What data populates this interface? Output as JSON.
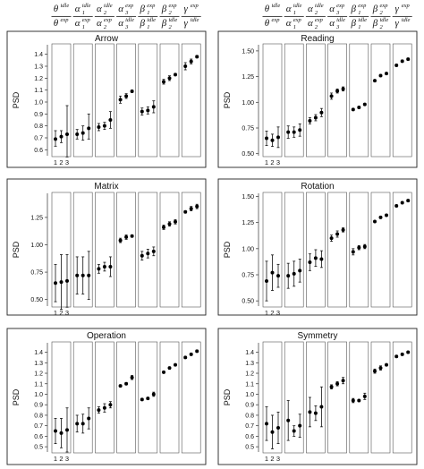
{
  "header": {
    "ratios": [
      {
        "num_sym": "θ",
        "num_sup": "idle",
        "num_sub": "",
        "den_sym": "θ",
        "den_sup": "exp",
        "den_sub": ""
      },
      {
        "num_sym": "α",
        "num_sup": "idle",
        "num_sub": "1",
        "den_sym": "α",
        "den_sup": "exp",
        "den_sub": "1"
      },
      {
        "num_sym": "α",
        "num_sup": "idle",
        "num_sub": "2",
        "den_sym": "α",
        "den_sup": "exp",
        "den_sub": "2"
      },
      {
        "num_sym": "α",
        "num_sup": "exp",
        "num_sub": "3",
        "den_sym": "α",
        "den_sup": "idle",
        "den_sub": "3"
      },
      {
        "num_sym": "β",
        "num_sup": "exp",
        "num_sub": "1",
        "den_sym": "β",
        "den_sup": "idle",
        "den_sub": "1"
      },
      {
        "num_sym": "β",
        "num_sup": "exp",
        "num_sub": "2",
        "den_sym": "β",
        "den_sup": "idle",
        "den_sub": "2"
      },
      {
        "num_sym": "γ",
        "num_sup": "exp",
        "num_sub": "",
        "den_sym": "γ",
        "den_sup": "idle",
        "den_sub": ""
      }
    ]
  },
  "chart_data": [
    {
      "type": "errorbar-panels",
      "title": "Arrow",
      "ylabel": "PSD",
      "ylim": [
        0.55,
        1.48
      ],
      "yticks": [
        "0.6",
        "0.7",
        "0.8",
        "0.9",
        "1.0",
        "1.1",
        "1.2",
        "1.3",
        "1.4"
      ],
      "ytick_values": [
        0.6,
        0.7,
        0.8,
        0.9,
        1.0,
        1.1,
        1.2,
        1.3,
        1.4
      ],
      "xticks": [
        "1",
        "2",
        "3"
      ],
      "groups": [
        [
          [
            0.69,
            0.63,
            0.76
          ],
          [
            0.71,
            0.66,
            0.76
          ],
          [
            0.73,
            0.54,
            0.97
          ]
        ],
        [
          [
            0.73,
            0.69,
            0.77
          ],
          [
            0.74,
            0.68,
            0.8
          ],
          [
            0.78,
            0.69,
            0.9
          ]
        ],
        [
          [
            0.79,
            0.76,
            0.82
          ],
          [
            0.8,
            0.77,
            0.83
          ],
          [
            0.85,
            0.78,
            0.92
          ]
        ],
        [
          [
            1.02,
            0.99,
            1.05
          ],
          [
            1.05,
            1.03,
            1.07
          ],
          [
            1.09,
            1.08,
            1.1
          ]
        ],
        [
          [
            0.92,
            0.89,
            0.95
          ],
          [
            0.93,
            0.9,
            0.96
          ],
          [
            0.96,
            0.91,
            1.01
          ]
        ],
        [
          [
            1.17,
            1.15,
            1.19
          ],
          [
            1.2,
            1.18,
            1.22
          ],
          [
            1.23,
            1.22,
            1.24
          ]
        ],
        [
          [
            1.3,
            1.27,
            1.33
          ],
          [
            1.34,
            1.32,
            1.36
          ],
          [
            1.38,
            1.37,
            1.39
          ]
        ]
      ]
    },
    {
      "type": "errorbar-panels",
      "title": "Reading",
      "ylabel": "PSD",
      "ylim": [
        0.48,
        1.56
      ],
      "yticks": [
        "0.50",
        "0.75",
        "1.00",
        "1.25",
        "1.50"
      ],
      "ytick_values": [
        0.5,
        0.75,
        1.0,
        1.25,
        1.5
      ],
      "xticks": [
        "1",
        "2",
        "3"
      ],
      "groups": [
        [
          [
            0.65,
            0.58,
            0.72
          ],
          [
            0.63,
            0.57,
            0.69
          ],
          [
            0.66,
            0.56,
            0.76
          ]
        ],
        [
          [
            0.71,
            0.65,
            0.77
          ],
          [
            0.71,
            0.66,
            0.76
          ],
          [
            0.73,
            0.67,
            0.79
          ]
        ],
        [
          [
            0.82,
            0.79,
            0.85
          ],
          [
            0.85,
            0.82,
            0.88
          ],
          [
            0.9,
            0.86,
            0.94
          ]
        ],
        [
          [
            1.06,
            1.03,
            1.09
          ],
          [
            1.11,
            1.09,
            1.13
          ],
          [
            1.13,
            1.11,
            1.15
          ]
        ],
        [
          [
            0.93,
            0.92,
            0.94
          ],
          [
            0.95,
            0.94,
            0.96
          ],
          [
            0.98,
            0.97,
            0.99
          ]
        ],
        [
          [
            1.21,
            1.2,
            1.22
          ],
          [
            1.26,
            1.25,
            1.27
          ],
          [
            1.28,
            1.27,
            1.29
          ]
        ],
        [
          [
            1.36,
            1.35,
            1.37
          ],
          [
            1.4,
            1.39,
            1.41
          ],
          [
            1.42,
            1.41,
            1.43
          ]
        ]
      ]
    },
    {
      "type": "errorbar-panels",
      "title": "Matrix",
      "ylabel": "PSD",
      "ylim": [
        0.44,
        1.47
      ],
      "yticks": [
        "0.50",
        "0.75",
        "1.00",
        "1.25"
      ],
      "ytick_values": [
        0.5,
        0.75,
        1.0,
        1.25
      ],
      "xticks": [
        "1",
        "2",
        "3"
      ],
      "groups": [
        [
          [
            0.65,
            0.48,
            0.82
          ],
          [
            0.66,
            0.41,
            0.91
          ],
          [
            0.67,
            0.43,
            0.91
          ]
        ],
        [
          [
            0.72,
            0.55,
            0.89
          ],
          [
            0.72,
            0.55,
            0.89
          ],
          [
            0.72,
            0.5,
            0.94
          ]
        ],
        [
          [
            0.78,
            0.74,
            0.82
          ],
          [
            0.8,
            0.76,
            0.84
          ],
          [
            0.8,
            0.71,
            0.89
          ]
        ],
        [
          [
            1.04,
            1.02,
            1.06
          ],
          [
            1.07,
            1.05,
            1.09
          ],
          [
            1.08,
            1.07,
            1.09
          ]
        ],
        [
          [
            0.9,
            0.86,
            0.94
          ],
          [
            0.92,
            0.88,
            0.96
          ],
          [
            0.94,
            0.9,
            0.98
          ]
        ],
        [
          [
            1.16,
            1.14,
            1.18
          ],
          [
            1.19,
            1.17,
            1.21
          ],
          [
            1.21,
            1.19,
            1.23
          ]
        ],
        [
          [
            1.3,
            1.29,
            1.31
          ],
          [
            1.33,
            1.31,
            1.35
          ],
          [
            1.35,
            1.33,
            1.37
          ]
        ]
      ]
    },
    {
      "type": "errorbar-panels",
      "title": "Rotation",
      "ylabel": "PSD",
      "ylim": [
        0.45,
        1.53
      ],
      "yticks": [
        "0.50",
        "0.75",
        "1.00",
        "1.25",
        "1.50"
      ],
      "ytick_values": [
        0.5,
        0.75,
        1.0,
        1.25,
        1.5
      ],
      "xticks": [
        "1",
        "2",
        "3"
      ],
      "groups": [
        [
          [
            0.69,
            0.5,
            0.88
          ],
          [
            0.77,
            0.6,
            0.94
          ],
          [
            0.74,
            0.63,
            0.85
          ]
        ],
        [
          [
            0.74,
            0.62,
            0.86
          ],
          [
            0.76,
            0.64,
            0.88
          ],
          [
            0.79,
            0.68,
            0.9
          ]
        ],
        [
          [
            0.87,
            0.79,
            0.95
          ],
          [
            0.91,
            0.83,
            0.99
          ],
          [
            0.9,
            0.82,
            0.98
          ]
        ],
        [
          [
            1.1,
            1.07,
            1.13
          ],
          [
            1.14,
            1.11,
            1.17
          ],
          [
            1.18,
            1.16,
            1.2
          ]
        ],
        [
          [
            0.97,
            0.94,
            1.0
          ],
          [
            1.01,
            0.99,
            1.03
          ],
          [
            1.02,
            1.0,
            1.04
          ]
        ],
        [
          [
            1.26,
            1.25,
            1.27
          ],
          [
            1.3,
            1.29,
            1.31
          ],
          [
            1.32,
            1.31,
            1.33
          ]
        ],
        [
          [
            1.41,
            1.4,
            1.42
          ],
          [
            1.44,
            1.43,
            1.45
          ],
          [
            1.46,
            1.45,
            1.47
          ]
        ]
      ]
    },
    {
      "type": "errorbar-panels",
      "title": "Operation",
      "ylabel": "PSD",
      "ylim": [
        0.45,
        1.49
      ],
      "yticks": [
        "0.5",
        "0.6",
        "0.7",
        "0.8",
        "0.9",
        "1.0",
        "1.1",
        "1.2",
        "1.3",
        "1.4"
      ],
      "ytick_values": [
        0.5,
        0.6,
        0.7,
        0.8,
        0.9,
        1.0,
        1.1,
        1.2,
        1.3,
        1.4
      ],
      "xticks": [
        "1",
        "2",
        "3"
      ],
      "groups": [
        [
          [
            0.65,
            0.53,
            0.77
          ],
          [
            0.63,
            0.49,
            0.77
          ],
          [
            0.66,
            0.45,
            0.87
          ]
        ],
        [
          [
            0.72,
            0.64,
            0.8
          ],
          [
            0.72,
            0.63,
            0.81
          ],
          [
            0.77,
            0.67,
            0.87
          ]
        ],
        [
          [
            0.85,
            0.82,
            0.88
          ],
          [
            0.87,
            0.83,
            0.91
          ],
          [
            0.9,
            0.87,
            0.93
          ]
        ],
        [
          [
            1.08,
            1.07,
            1.09
          ],
          [
            1.1,
            1.09,
            1.11
          ],
          [
            1.16,
            1.14,
            1.18
          ]
        ],
        [
          [
            0.95,
            0.94,
            0.96
          ],
          [
            0.96,
            0.95,
            0.97
          ],
          [
            1.0,
            0.98,
            1.02
          ]
        ],
        [
          [
            1.21,
            1.2,
            1.22
          ],
          [
            1.25,
            1.24,
            1.26
          ],
          [
            1.28,
            1.27,
            1.29
          ]
        ],
        [
          [
            1.35,
            1.34,
            1.36
          ],
          [
            1.38,
            1.37,
            1.39
          ],
          [
            1.41,
            1.4,
            1.42
          ]
        ]
      ]
    },
    {
      "type": "errorbar-panels",
      "title": "Symmetry",
      "ylabel": "PSD",
      "ylim": [
        0.45,
        1.49
      ],
      "yticks": [
        "0.5",
        "0.6",
        "0.7",
        "0.8",
        "0.9",
        "1.0",
        "1.1",
        "1.2",
        "1.3",
        "1.4"
      ],
      "ytick_values": [
        0.5,
        0.6,
        0.7,
        0.8,
        0.9,
        1.0,
        1.1,
        1.2,
        1.3,
        1.4
      ],
      "xticks": [
        "1",
        "2",
        "3"
      ],
      "groups": [
        [
          [
            0.72,
            0.56,
            0.88
          ],
          [
            0.64,
            0.48,
            0.8
          ],
          [
            0.68,
            0.53,
            0.83
          ]
        ],
        [
          [
            0.75,
            0.56,
            0.94
          ],
          [
            0.65,
            0.6,
            0.7
          ],
          [
            0.7,
            0.59,
            0.81
          ]
        ],
        [
          [
            0.83,
            0.69,
            0.97
          ],
          [
            0.82,
            0.75,
            0.89
          ],
          [
            0.88,
            0.69,
            1.07
          ]
        ],
        [
          [
            1.07,
            1.05,
            1.09
          ],
          [
            1.1,
            1.08,
            1.12
          ],
          [
            1.13,
            1.1,
            1.16
          ]
        ],
        [
          [
            0.94,
            0.92,
            0.96
          ],
          [
            0.94,
            0.93,
            0.95
          ],
          [
            0.98,
            0.95,
            1.01
          ]
        ],
        [
          [
            1.22,
            1.2,
            1.24
          ],
          [
            1.25,
            1.23,
            1.27
          ],
          [
            1.28,
            1.27,
            1.29
          ]
        ],
        [
          [
            1.36,
            1.35,
            1.37
          ],
          [
            1.38,
            1.37,
            1.39
          ],
          [
            1.4,
            1.39,
            1.41
          ]
        ]
      ]
    }
  ]
}
